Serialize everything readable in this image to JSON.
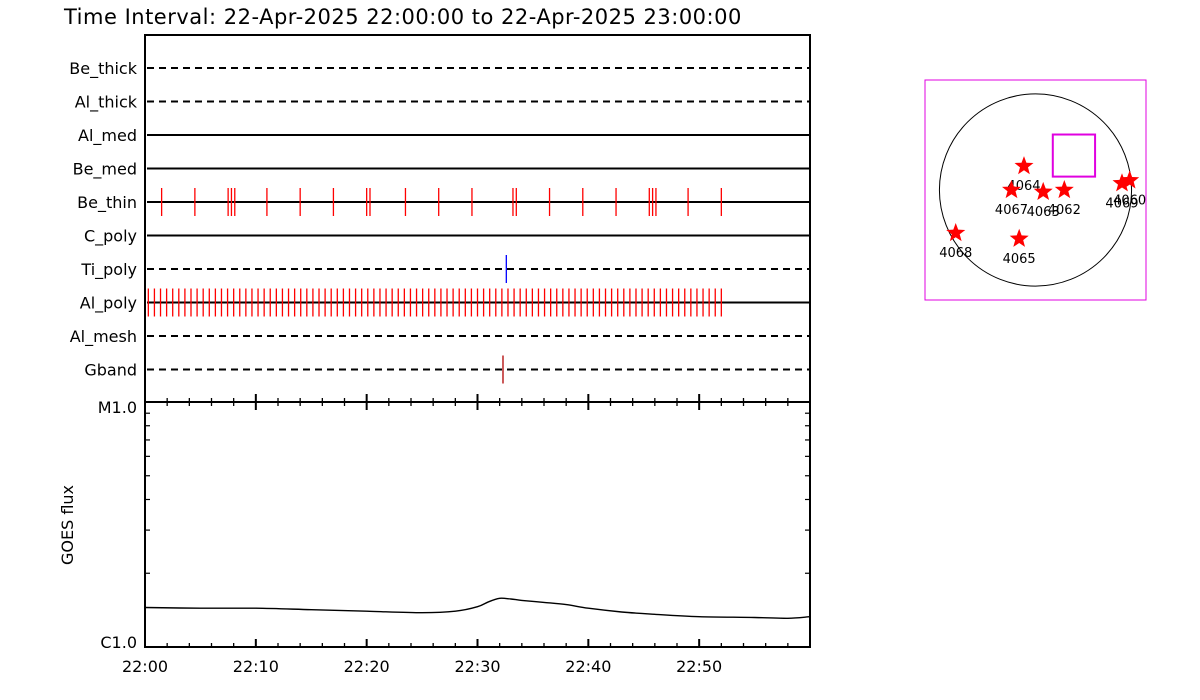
{
  "title": "Time Interval: 22-Apr-2025 22:00:00 to 22-Apr-2025 23:00:00",
  "colors": {
    "red": "#ff0000",
    "blue": "#0000ff",
    "magenta": "#e000e0",
    "ink": "#000000"
  },
  "chart_data": [
    {
      "type": "timeline",
      "x_range_minutes": [
        0,
        60
      ],
      "x_tick_labels": [
        "22:00",
        "22:10",
        "22:20",
        "22:30",
        "22:40",
        "22:50"
      ],
      "x_tick_minutes": [
        0,
        10,
        20,
        30,
        40,
        50
      ],
      "channels": [
        {
          "name": "Be_thick",
          "style": "dashed",
          "marks": [],
          "mark_color": "#ff0000"
        },
        {
          "name": "Al_thick",
          "style": "dashed",
          "marks": [],
          "mark_color": "#ff0000"
        },
        {
          "name": "Al_med",
          "style": "solid",
          "marks": [],
          "mark_color": "#ff0000"
        },
        {
          "name": "Be_med",
          "style": "solid",
          "marks": [],
          "mark_color": "#ff0000"
        },
        {
          "name": "Be_thin",
          "style": "solid",
          "mark_color": "#ff0000",
          "marks": [
            1.5,
            4.5,
            7.5,
            7.8,
            8.1,
            11.0,
            14.0,
            17.0,
            20.0,
            20.3,
            23.5,
            26.5,
            29.5,
            33.2,
            33.5,
            36.5,
            39.5,
            42.5,
            45.5,
            45.8,
            46.1,
            49.0,
            52.0
          ]
        },
        {
          "name": "C_poly",
          "style": "solid",
          "marks": [],
          "mark_color": "#ff0000"
        },
        {
          "name": "Ti_poly",
          "style": "dashed",
          "mark_color": "#0000ff",
          "marks": [
            32.6
          ]
        },
        {
          "name": "Al_poly",
          "style": "solid",
          "mark_color": "#ff0000",
          "marks_every": {
            "start": 0.3,
            "end": 52.0,
            "step": 0.55
          }
        },
        {
          "name": "Al_mesh",
          "style": "dashed",
          "marks": [],
          "mark_color": "#ff0000"
        },
        {
          "name": "Gband",
          "style": "dashed",
          "mark_color": "#b00000",
          "marks": [
            32.3
          ]
        }
      ]
    },
    {
      "type": "line",
      "ylabel": "GOES flux",
      "y_scale": "log",
      "y_tick_labels": [
        "M1.0",
        "C1.0"
      ],
      "ylim_wm2": [
        1e-06,
        1e-05
      ],
      "x_minutes": [
        0,
        5,
        10,
        15,
        20,
        25,
        28,
        30,
        31,
        32,
        33,
        34,
        36,
        38,
        40,
        43,
        46,
        50,
        55,
        58,
        60
      ],
      "y_wm2": [
        1.45e-06,
        1.44e-06,
        1.44e-06,
        1.42e-06,
        1.4e-06,
        1.38e-06,
        1.4e-06,
        1.46e-06,
        1.53e-06,
        1.58e-06,
        1.57e-06,
        1.55e-06,
        1.52e-06,
        1.49e-06,
        1.44e-06,
        1.39e-06,
        1.36e-06,
        1.33e-06,
        1.32e-06,
        1.31e-06,
        1.33e-06
      ]
    },
    {
      "type": "scatter",
      "name": "solar-disk-map",
      "coords": "arcsec",
      "disk_radius_arcsec": 1000,
      "view_box_arcsec": [
        -1150,
        1150,
        -1150,
        1150
      ],
      "fov_box_arcsec": {
        "x": [
          180,
          620
        ],
        "y": [
          140,
          580
        ]
      },
      "regions": [
        {
          "label": "4064",
          "x": -120,
          "y": 250
        },
        {
          "label": "4067",
          "x": -250,
          "y": 0
        },
        {
          "label": "4063",
          "x": 80,
          "y": -20
        },
        {
          "label": "4062",
          "x": 300,
          "y": 0
        },
        {
          "label": "4069",
          "x": 900,
          "y": 70
        },
        {
          "label": "4060",
          "x": 980,
          "y": 100
        },
        {
          "label": "4068",
          "x": -830,
          "y": -450
        },
        {
          "label": "4065",
          "x": -170,
          "y": -510
        }
      ]
    }
  ]
}
